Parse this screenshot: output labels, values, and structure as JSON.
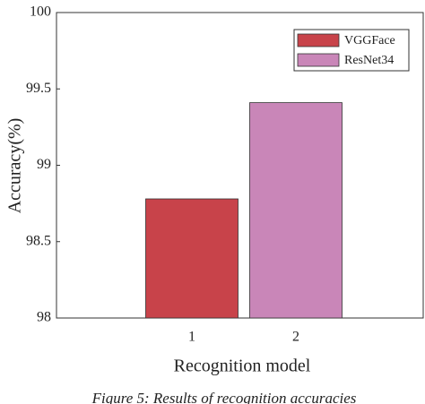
{
  "chart_data": {
    "type": "bar",
    "title": null,
    "xlabel": "Recognition model",
    "ylabel": "Accuracy(%)",
    "caption": "Figure 5: Results of recognition accuracies",
    "categories": [
      "1",
      "2"
    ],
    "series": [
      {
        "name": "VGGFace",
        "color": "#c8434a",
        "values": [
          98.78,
          null
        ]
      },
      {
        "name": "ResNet34",
        "color": "#c986b8",
        "values": [
          null,
          99.41
        ]
      }
    ],
    "ylim": [
      98,
      100
    ],
    "yticks": [
      98,
      98.5,
      99,
      99.5,
      100
    ],
    "grid": false,
    "legend": "upper right"
  }
}
